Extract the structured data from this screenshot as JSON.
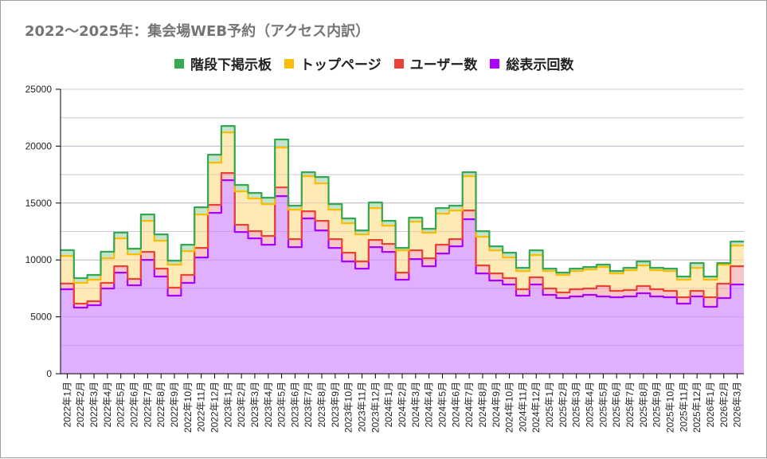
{
  "title": "2022～2025年：集会場WEB予約（アクセス内訳）",
  "chart_data": {
    "type": "area",
    "subtype": "stacked-stepped-area",
    "title": "2022～2025年：集会場WEB予約（アクセス内訳）",
    "xlabel": "",
    "ylabel": "",
    "ylim": [
      0,
      25000
    ],
    "yticks": [
      0,
      5000,
      10000,
      15000,
      20000,
      25000
    ],
    "grid": true,
    "legend_position": "top",
    "categories": [
      "2022年1月",
      "2022年2月",
      "2022年3月",
      "2022年4月",
      "2022年5月",
      "2022年6月",
      "2022年7月",
      "2022年8月",
      "2022年9月",
      "2022年10月",
      "2022年11月",
      "2022年12月",
      "2023年1月",
      "2023年2月",
      "2023年3月",
      "2023年4月",
      "2023年5月",
      "2023年6月",
      "2023年7月",
      "2023年8月",
      "2023年9月",
      "2023年10月",
      "2023年11月",
      "2023年12月",
      "2024年1月",
      "2024年2月",
      "2024年3月",
      "2024年4月",
      "2024年5月",
      "2024年6月",
      "2024年7月",
      "2024年8月",
      "2024年9月",
      "2024年10月",
      "2024年11月",
      "2024年12月",
      "2025年1月",
      "2025年2月",
      "2025年3月",
      "2025年4月",
      "2025年5月",
      "2025年6月",
      "2025年7月",
      "2025年8月",
      "2025年9月",
      "2025年10月",
      "2025年11月",
      "2025年12月",
      "2026年1月",
      "2026年2月",
      "2026年3月"
    ],
    "series": [
      {
        "name": "総表示回数",
        "color": "#aa00ff",
        "fill": "#e0b0ff",
        "values": [
          7420,
          5810,
          6020,
          7490,
          8890,
          7770,
          10010,
          8540,
          6860,
          7980,
          10220,
          14140,
          17010,
          12460,
          11900,
          11340,
          15610,
          11130,
          13650,
          12600,
          11060,
          9870,
          9240,
          11130,
          10710,
          8260,
          10080,
          9450,
          10570,
          11200,
          13580,
          8820,
          8190,
          7840,
          6860,
          7840,
          6930,
          6650,
          6790,
          6930,
          6790,
          6720,
          6790,
          7070,
          6790,
          6720,
          6160,
          6790,
          5880,
          6650,
          7840
        ]
      },
      {
        "name": "ユーザー数",
        "color": "#ea4335",
        "fill": "#f6c6c9",
        "values": [
          510,
          350,
          350,
          490,
          560,
          560,
          700,
          700,
          700,
          700,
          840,
          700,
          630,
          630,
          630,
          770,
          760,
          700,
          630,
          840,
          770,
          770,
          630,
          630,
          700,
          630,
          770,
          700,
          770,
          630,
          770,
          700,
          630,
          560,
          560,
          630,
          560,
          490,
          630,
          560,
          910,
          560,
          560,
          630,
          630,
          560,
          560,
          490,
          840,
          1260,
          1610
        ]
      },
      {
        "name": "トップページ",
        "color": "#fbbc04",
        "fill": "#feeab5",
        "values": [
          2430,
          1820,
          1890,
          2170,
          2450,
          2170,
          2730,
          2450,
          2030,
          2100,
          2940,
          3710,
          3570,
          2940,
          2870,
          2800,
          3510,
          2590,
          3080,
          3290,
          2590,
          2590,
          2380,
          2800,
          1610,
          1960,
          2520,
          2240,
          2730,
          2520,
          3010,
          2520,
          2030,
          1820,
          1610,
          1960,
          1540,
          1540,
          1610,
          1680,
          1680,
          1540,
          1750,
          1820,
          1680,
          1750,
          1540,
          2030,
          1540,
          1680,
          1820
        ]
      },
      {
        "name": "階段下掲示板",
        "color": "#34a853",
        "fill": "#c4e5cc",
        "values": [
          500,
          420,
          420,
          570,
          500,
          490,
          560,
          560,
          350,
          560,
          630,
          700,
          560,
          560,
          490,
          560,
          710,
          350,
          350,
          560,
          490,
          420,
          350,
          490,
          420,
          210,
          350,
          350,
          490,
          420,
          350,
          490,
          350,
          420,
          280,
          420,
          210,
          210,
          210,
          210,
          210,
          210,
          210,
          350,
          210,
          210,
          280,
          420,
          280,
          140,
          350
        ]
      }
    ]
  },
  "legend": [
    {
      "label": "階段下掲示板",
      "color": "#34a853"
    },
    {
      "label": "トップページ",
      "color": "#fbbc04"
    },
    {
      "label": "ユーザー数",
      "color": "#ea4335"
    },
    {
      "label": "総表示回数",
      "color": "#aa00ff"
    }
  ]
}
